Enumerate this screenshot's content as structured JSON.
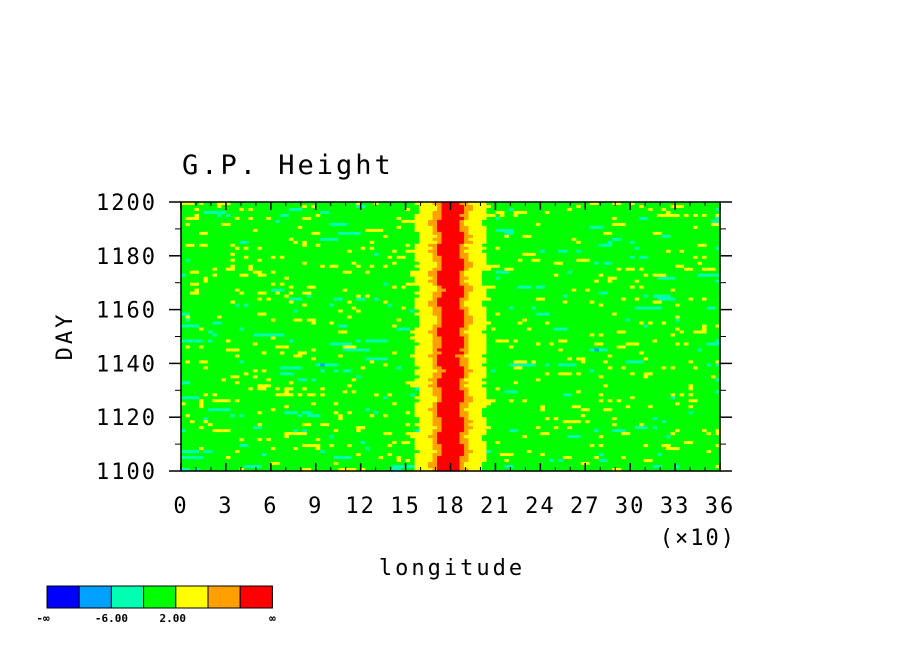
{
  "chart_data": {
    "type": "heatmap",
    "title": "G.P. Height",
    "xlabel": "longitude",
    "ylabel": "DAY",
    "x_scale_note": "(×10)",
    "xlim": [
      0,
      36
    ],
    "ylim": [
      1100,
      1200
    ],
    "x_ticks": [
      0,
      3,
      6,
      9,
      12,
      15,
      18,
      21,
      24,
      27,
      30,
      33,
      36
    ],
    "x_tick_labels": [
      "0",
      "3",
      "6",
      "9",
      "12",
      "15",
      "18",
      "21",
      "24",
      "27",
      "30",
      "33",
      "36"
    ],
    "y_ticks": [
      1100,
      1120,
      1140,
      1160,
      1180,
      1200
    ],
    "y_tick_labels": [
      "1100",
      "1120",
      "1140",
      "1160",
      "1180",
      "1200"
    ],
    "colorbar": {
      "colors": [
        "#0000ff",
        "#00a0ff",
        "#00ffb0",
        "#00ff00",
        "#ffff00",
        "#ffa000",
        "#ff0000"
      ],
      "labels": [
        "-∞",
        "-6.00",
        "2.00",
        "∞"
      ]
    },
    "features": [
      {
        "name": "ridge",
        "x_center": 18,
        "description_level": "red core with orange/yellow flanks"
      }
    ]
  }
}
